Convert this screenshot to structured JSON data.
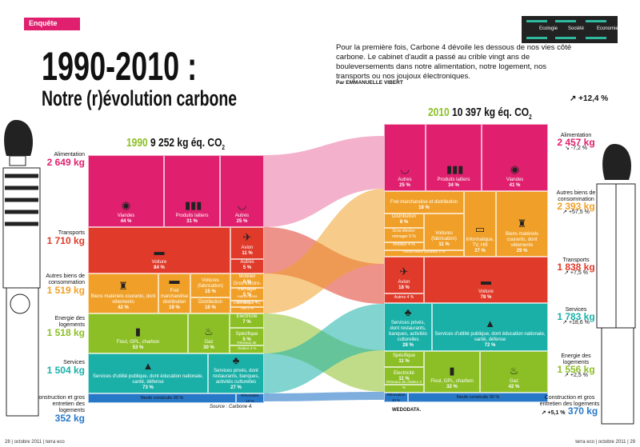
{
  "section_tag": "Enquête",
  "themes": [
    "Ecologie",
    "Société",
    "Economie"
  ],
  "title_line1": "1990-2010 :",
  "title_line2": "Notre (r)évolution carbone",
  "intro": "Pour la première fois, Carbone 4 dévoile les dessous de nos vies côté carbone. Le cabinet d'audit a passé au crible vingt ans de bouleversements dans notre alimentation, notre logement, nos transports ou nos joujoux électroniques.",
  "byline": "Par EMMANUELLE VIBERT",
  "year1990": {
    "year": "1990",
    "total": "9 252 kg éq. CO",
    "sub": "2"
  },
  "year2010": {
    "year": "2010",
    "total": "10 397 kg éq. CO",
    "sub": "2"
  },
  "total_change": "+12,4 %",
  "left_labels": [
    {
      "name": "Alimentation",
      "value": "2 649 kg",
      "color": "#e0206e"
    },
    {
      "name": "Transports",
      "value": "1 710 kg",
      "color": "#e03a2a"
    },
    {
      "name": "Autres biens de consommation",
      "value": "1 519 kg",
      "color": "#f0a028"
    },
    {
      "name": "Energie des logements",
      "value": "1 518 kg",
      "color": "#8cbf26"
    },
    {
      "name": "Services",
      "value": "1 504 kg",
      "color": "#1ab0a8"
    },
    {
      "name": "Construction et gros entretien des logements",
      "value": "352 kg",
      "color": "#2878c8"
    }
  ],
  "right_labels": [
    {
      "name": "Alimentation",
      "value": "2 457 kg",
      "change": "-7,2 %",
      "color": "#e0206e"
    },
    {
      "name": "Autres biens de consommation",
      "value": "2 393 kg",
      "change": "+57,5 %",
      "color": "#f0a028"
    },
    {
      "name": "Transports",
      "value": "1 838 kg",
      "change": "+7,5 %",
      "color": "#e03a2a"
    },
    {
      "name": "Services",
      "value": "1 783 kg",
      "change": "+18,6 %",
      "color": "#1ab0a8"
    },
    {
      "name": "Energie des logements",
      "value": "1 556 kg",
      "change": "+2,5 %",
      "color": "#8cbf26"
    },
    {
      "name": "Construction et gros entretien des logements",
      "value": "370 kg",
      "change": "+5,1 %",
      "color": "#2878c8"
    }
  ],
  "cells1990": [
    {
      "label": "Viandes",
      "pct": "44 %",
      "icon": "◉"
    },
    {
      "label": "Produits laitiers",
      "pct": "31 %",
      "icon": "▮▮▮"
    },
    {
      "label": "Autres",
      "pct": "25 %",
      "icon": "◡"
    },
    {
      "label": "Voiture",
      "pct": "84 %",
      "icon": "▬"
    },
    {
      "label": "Avion",
      "pct": "11 %",
      "icon": "✈"
    },
    {
      "label": "Autres",
      "pct": "5 %",
      "icon": ""
    },
    {
      "label": "Biens matériels courants, dont vêtements",
      "pct": "42 %",
      "icon": "♜"
    },
    {
      "label": "Fret marchandise distribution",
      "pct": "19 %",
      "icon": "▬"
    },
    {
      "label": "Voitures (fabrication)",
      "pct": "15 %",
      "icon": ""
    },
    {
      "label": "Distribution",
      "pct": "10 %",
      "icon": ""
    },
    {
      "label": "Mobilier",
      "pct": "6 %",
      "icon": ""
    },
    {
      "label": "Gros électro-ménager",
      "pct": "5 %",
      "icon": ""
    },
    {
      "label": "Autres biens durables 2 %",
      "pct": "",
      "icon": ""
    },
    {
      "label": "Informatique, TV, Hifi 1 %",
      "pct": "",
      "icon": ""
    },
    {
      "label": "Fioul, GPL, charbon",
      "pct": "53 %",
      "icon": "▮"
    },
    {
      "label": "Gaz",
      "pct": "30 %",
      "icon": "♨"
    },
    {
      "label": "Electricité",
      "pct": "7 %",
      "icon": ""
    },
    {
      "label": "Spécifique",
      "pct": "5 %",
      "icon": ""
    },
    {
      "label": "Réseaux de chaleur 4 %",
      "pct": "",
      "icon": ""
    },
    {
      "label": "Services d'utilité publique, dont éducation nationale, santé, défense",
      "pct": "73 %",
      "icon": "▲"
    },
    {
      "label": "Services privés, dont restaurants, banques, activités culturelles",
      "pct": "27 %",
      "icon": "♣"
    },
    {
      "label": "Neufs construits 90 %",
      "pct": "",
      "icon": ""
    },
    {
      "label": "Rénovation 10 %",
      "pct": "",
      "icon": ""
    }
  ],
  "cells2010": [
    {
      "label": "Autres",
      "pct": "25 %",
      "icon": "◡"
    },
    {
      "label": "Produits laitiers",
      "pct": "34 %",
      "icon": "▮▮▮"
    },
    {
      "label": "Viandes",
      "pct": "41 %",
      "icon": "◉"
    },
    {
      "label": "Fret marchandise et distribution",
      "pct": "18 %",
      "icon": ""
    },
    {
      "label": "Distribution",
      "pct": "8 %",
      "icon": ""
    },
    {
      "label": "Gros électro-ménager 5 %",
      "pct": "",
      "icon": ""
    },
    {
      "label": "Mobilier 4 %",
      "pct": "",
      "icon": ""
    },
    {
      "label": "Autres biens durables 2 %",
      "pct": "",
      "icon": ""
    },
    {
      "label": "Voitures (fabrication)",
      "pct": "11 %",
      "icon": ""
    },
    {
      "label": "Informatique, TV, Hifi",
      "pct": "27 %",
      "icon": "▭"
    },
    {
      "label": "Biens matériels courants, dont vêtements",
      "pct": "29 %",
      "icon": "♜"
    },
    {
      "label": "Avion",
      "pct": "18 %",
      "icon": "✈"
    },
    {
      "label": "Voiture",
      "pct": "78 %",
      "icon": "▬"
    },
    {
      "label": "Autres 4 %",
      "pct": "",
      "icon": ""
    },
    {
      "label": "Services privés, dont restaurants, banques, activités culturelles",
      "pct": "28 %",
      "icon": "♣"
    },
    {
      "label": "Services d'utilité publique, dont éducation nationale, santé, défense",
      "pct": "72 %",
      "icon": "▲"
    },
    {
      "label": "Spécifique",
      "pct": "11 %",
      "icon": ""
    },
    {
      "label": "Electricité",
      "pct": "11 %",
      "icon": ""
    },
    {
      "label": "Réseaux de chaleur 4 %",
      "pct": "",
      "icon": ""
    },
    {
      "label": "Fioul, GPL, charbon",
      "pct": "32 %",
      "icon": "▮"
    },
    {
      "label": "Gaz",
      "pct": "42 %",
      "icon": "♨"
    },
    {
      "label": "Rénovation 10 %",
      "pct": "",
      "icon": ""
    },
    {
      "label": "Neufs construits 90 %",
      "pct": "",
      "icon": ""
    }
  ],
  "source": "Source : Carbone 4.",
  "credit": "WEDODATA.",
  "footer_left": "28 | octobre 2011 | terra eco",
  "footer_right": "terra eco | octobre 2011 | 29"
}
